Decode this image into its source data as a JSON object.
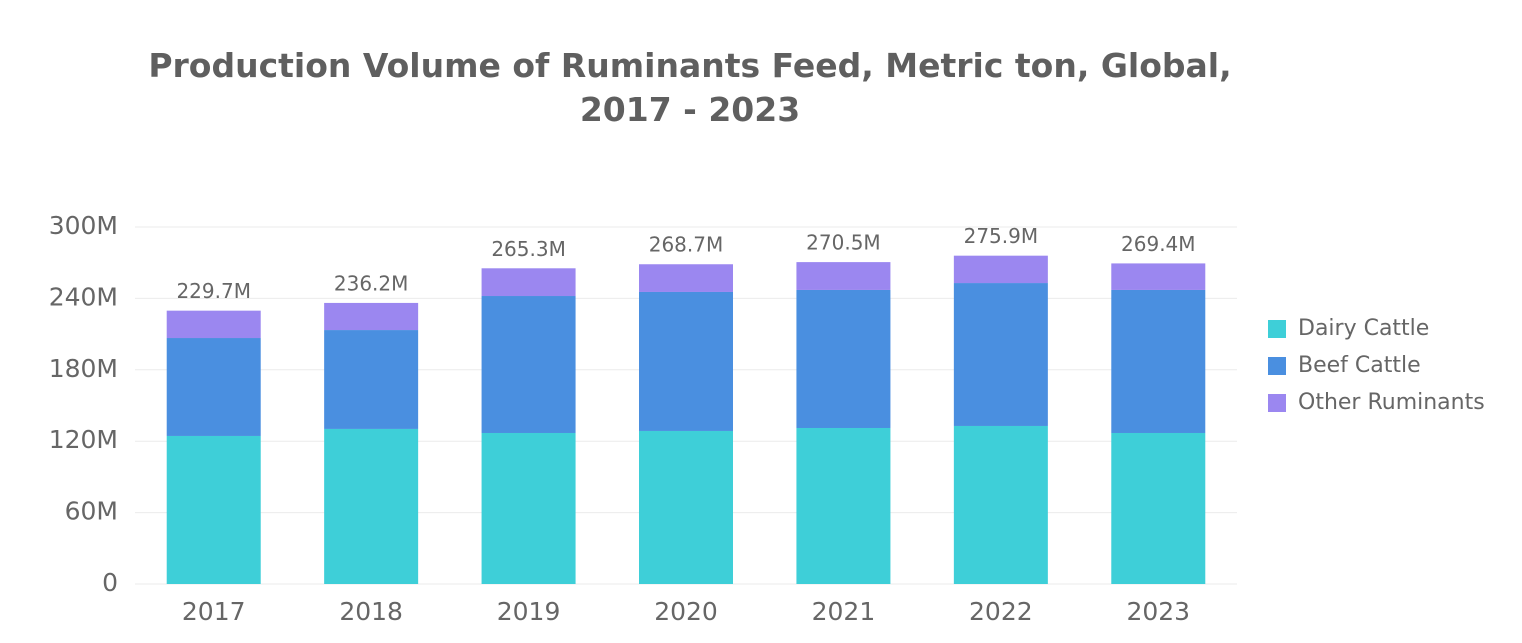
{
  "chart_data": {
    "type": "stacked_bar",
    "title": "Production Volume of Ruminants Feed, Metric ton, Global, 2017 - 2023",
    "categories": [
      "2017",
      "2018",
      "2019",
      "2020",
      "2021",
      "2022",
      "2023"
    ],
    "series": [
      {
        "name": "Dairy Cattle",
        "color": "#3ecfd8",
        "values": [
          124400000,
          130300000,
          126900000,
          128600000,
          131100000,
          132800000,
          126900000
        ]
      },
      {
        "name": "Beef Cattle",
        "color": "#4a8fe0",
        "values": [
          82300000,
          83100000,
          115100000,
          116800000,
          116000000,
          120100000,
          120200000
        ]
      },
      {
        "name": "Other Ruminants",
        "color": "#9b87f0",
        "values": [
          23000000,
          22800000,
          23300000,
          23300000,
          23400000,
          23000000,
          22300000
        ]
      }
    ],
    "totals": [
      229700000,
      236200000,
      265300000,
      268700000,
      270500000,
      275900000,
      269400000
    ],
    "total_labels": [
      "229.7M",
      "236.2M",
      "265.3M",
      "268.7M",
      "270.5M",
      "275.9M",
      "269.4M"
    ],
    "ylim": [
      0,
      300000000
    ],
    "yticks": [
      {
        "value": 0,
        "label": "0"
      },
      {
        "value": 60000000,
        "label": "60M"
      },
      {
        "value": 120000000,
        "label": "120M"
      },
      {
        "value": 180000000,
        "label": "180M"
      },
      {
        "value": 240000000,
        "label": "240M"
      },
      {
        "value": 300000000,
        "label": "300M"
      }
    ],
    "grid": true,
    "legend": "right"
  }
}
